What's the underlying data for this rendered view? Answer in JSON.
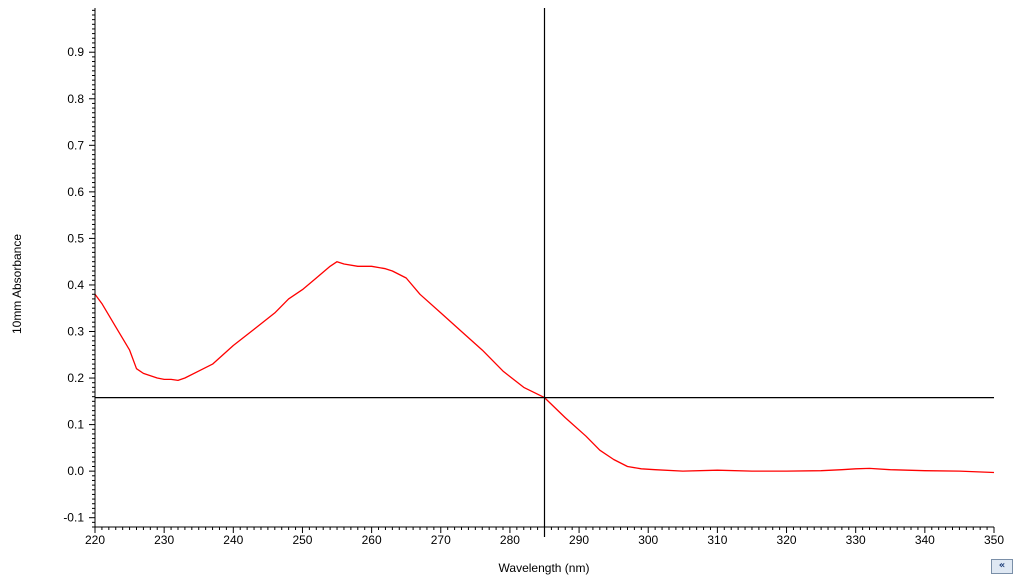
{
  "chart_data": {
    "type": "line",
    "xlabel": "Wavelength (nm)",
    "ylabel": "10mm Absorbance",
    "xlim": [
      220,
      350
    ],
    "ylim": [
      -0.12,
      0.995
    ],
    "x_ticks": [
      220,
      230,
      240,
      250,
      260,
      270,
      280,
      290,
      300,
      310,
      320,
      330,
      340,
      350
    ],
    "y_ticks": [
      -0.1,
      0.0,
      0.1,
      0.2,
      0.3,
      0.4,
      0.5,
      0.6,
      0.7,
      0.8,
      0.9
    ],
    "y_tick_labels": [
      "-0.1",
      "0.0",
      "0.1",
      "0.2",
      "0.3",
      "0.4",
      "0.5",
      "0.6",
      "0.7",
      "0.8",
      "0.9"
    ],
    "grid": false,
    "cursor": {
      "x": 285,
      "y": 0.158
    },
    "series": [
      {
        "color": "#ff0000",
        "x": [
          220,
          221,
          223,
          225,
          226,
          227,
          229,
          230,
          231,
          232,
          233,
          235,
          237,
          240,
          243,
          246,
          248,
          250,
          252,
          254,
          255,
          256,
          258,
          260,
          262,
          263,
          265,
          267,
          270,
          273,
          276,
          279,
          282,
          285,
          288,
          291,
          293,
          295,
          297,
          299,
          301,
          305,
          310,
          315,
          320,
          325,
          328,
          330,
          332,
          335,
          340,
          345,
          350
        ],
        "y": [
          0.38,
          0.36,
          0.31,
          0.26,
          0.22,
          0.21,
          0.2,
          0.197,
          0.197,
          0.195,
          0.2,
          0.215,
          0.23,
          0.27,
          0.305,
          0.34,
          0.37,
          0.39,
          0.415,
          0.44,
          0.45,
          0.445,
          0.44,
          0.44,
          0.435,
          0.43,
          0.415,
          0.38,
          0.34,
          0.3,
          0.26,
          0.215,
          0.18,
          0.158,
          0.115,
          0.075,
          0.045,
          0.025,
          0.01,
          0.005,
          0.003,
          0.0,
          0.002,
          0.0,
          0.0,
          0.001,
          0.003,
          0.005,
          0.006,
          0.003,
          0.001,
          0.0,
          -0.003
        ]
      }
    ]
  },
  "ui": {
    "scroll_button_glyph": "«"
  }
}
